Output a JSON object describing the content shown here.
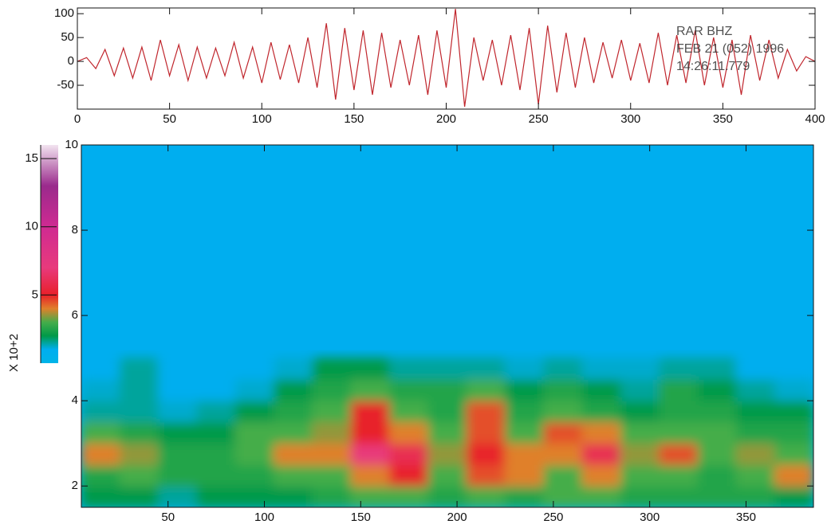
{
  "chart_data": [
    {
      "type": "line",
      "color": "#c0262d",
      "annotations": [
        "RAR   BHZ",
        "FEB 21 (052) 1996",
        "14:26:11.779"
      ],
      "x": [
        0,
        5,
        10,
        15,
        20,
        25,
        30,
        35,
        40,
        45,
        50,
        55,
        60,
        65,
        70,
        75,
        80,
        85,
        90,
        95,
        100,
        105,
        110,
        115,
        120,
        125,
        130,
        135,
        140,
        145,
        150,
        155,
        160,
        165,
        170,
        175,
        180,
        185,
        190,
        195,
        200,
        205,
        210,
        215,
        220,
        225,
        230,
        235,
        240,
        245,
        250,
        255,
        260,
        265,
        270,
        275,
        280,
        285,
        290,
        295,
        300,
        305,
        310,
        315,
        320,
        325,
        330,
        335,
        340,
        345,
        350,
        355,
        360,
        365,
        370,
        375,
        380,
        385,
        390,
        395,
        400
      ],
      "series": [
        {
          "values": [
            0,
            8,
            -15,
            25,
            -30,
            28,
            -35,
            30,
            -40,
            45,
            -30,
            35,
            -40,
            30,
            -35,
            28,
            -30,
            40,
            -35,
            30,
            -45,
            40,
            -38,
            35,
            -45,
            50,
            -55,
            80,
            -80,
            70,
            -60,
            65,
            -70,
            60,
            -55,
            45,
            -50,
            55,
            -70,
            65,
            -55,
            110,
            -95,
            50,
            -40,
            45,
            -50,
            55,
            -60,
            70,
            -90,
            75,
            -65,
            60,
            -55,
            50,
            -45,
            40,
            -35,
            45,
            -40,
            38,
            -45,
            60,
            -50,
            55,
            -45,
            65,
            -50,
            50,
            -55,
            45,
            -70,
            55,
            -40,
            45,
            -35,
            25,
            -20,
            10,
            0
          ]
        }
      ],
      "xlim": [
        0,
        400
      ],
      "xticks": [
        0,
        50,
        100,
        150,
        200,
        250,
        300,
        350,
        400
      ],
      "ylim": [
        -100,
        112
      ],
      "yticks": [
        -50,
        0,
        50,
        100
      ]
    },
    {
      "type": "heatmap",
      "background_color": "#00aeef",
      "x_bins": [
        5,
        25,
        45,
        65,
        85,
        105,
        125,
        145,
        165,
        185,
        205,
        225,
        245,
        265,
        285,
        305,
        325,
        345,
        365,
        385
      ],
      "y_bins": [
        1.5,
        2.0,
        2.5,
        3.0,
        3.5,
        4.0,
        4.5,
        5.0
      ],
      "z": [
        [
          2,
          2,
          1.5,
          2,
          2,
          2,
          2.5,
          3,
          3,
          2.5,
          3,
          2.5,
          3,
          3,
          2.5,
          2.5,
          2.5,
          2.5,
          2
        ],
        [
          2.5,
          3,
          2.5,
          2.5,
          2.5,
          3,
          3,
          4,
          5,
          3,
          4.5,
          4,
          3,
          4,
          3,
          3,
          2.5,
          3,
          4
        ],
        [
          4,
          3.5,
          2.5,
          2.5,
          3,
          4,
          4,
          7,
          6,
          3.5,
          5,
          4,
          4,
          6,
          3.5,
          4.5,
          3,
          3.5,
          3
        ],
        [
          3,
          2.5,
          2,
          2,
          3,
          3,
          3.5,
          5,
          4,
          3,
          4.5,
          3,
          4.5,
          4,
          3,
          3,
          3,
          2.5,
          2.5
        ],
        [
          1.5,
          1.5,
          1.2,
          1.5,
          2,
          2.5,
          3,
          5,
          3,
          2.5,
          4.5,
          2.5,
          3,
          2.5,
          2,
          2.5,
          2.5,
          2,
          2
        ],
        [
          1.2,
          1.5,
          1,
          1,
          1.2,
          2,
          2.5,
          3,
          2.5,
          2.5,
          3,
          2,
          2.5,
          2,
          1.5,
          2.5,
          2,
          1.5,
          1.2
        ],
        [
          1,
          1.5,
          1,
          1,
          1,
          1.2,
          2,
          2,
          1.5,
          1.5,
          1.5,
          1.2,
          1.5,
          1.2,
          1.2,
          1.5,
          1.5,
          1,
          1
        ]
      ],
      "xlim": [
        5,
        385
      ],
      "xticks": [
        50,
        100,
        150,
        200,
        250,
        300,
        350
      ],
      "ylim": [
        1.5,
        10
      ],
      "yticks": [
        2,
        4,
        6,
        8,
        10
      ],
      "colorbar": {
        "label": "X 10+2",
        "lim": [
          0,
          16
        ],
        "ticks": [
          5,
          10,
          15
        ],
        "colorscale": [
          [
            0,
            "#00b4e8"
          ],
          [
            1,
            "#00aeef"
          ],
          [
            2,
            "#009a48"
          ],
          [
            3,
            "#45ad4a"
          ],
          [
            4,
            "#e0802b"
          ],
          [
            5,
            "#e8202a"
          ],
          [
            7,
            "#e83a7c"
          ],
          [
            10,
            "#cf2a92"
          ],
          [
            13,
            "#9a2a8c"
          ],
          [
            16,
            "#f2e4f0"
          ]
        ]
      }
    }
  ]
}
